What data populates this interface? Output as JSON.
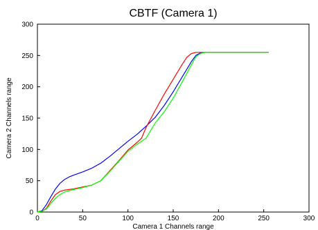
{
  "chart_data": {
    "type": "line",
    "title": "CBTF (Camera 1)",
    "xlabel": "Camera 1 Channels range",
    "ylabel": "Camera 2 Channels range",
    "xlim": [
      0,
      300
    ],
    "ylim": [
      0,
      300
    ],
    "xticks": [
      0,
      50,
      100,
      150,
      200,
      250,
      300
    ],
    "yticks": [
      0,
      50,
      100,
      150,
      200,
      250,
      300
    ],
    "grid": false,
    "series": [
      {
        "color": "#0000ff",
        "x": [
          0,
          5,
          10,
          15,
          20,
          25,
          30,
          35,
          40,
          50,
          60,
          70,
          80,
          90,
          100,
          110,
          120,
          130,
          140,
          150,
          160,
          170,
          175,
          180,
          185,
          190,
          200,
          210,
          220,
          230,
          240,
          255
        ],
        "y": [
          0,
          2,
          12,
          25,
          37,
          46,
          52,
          56,
          59,
          64,
          70,
          78,
          89,
          101,
          113,
          124,
          137,
          151,
          170,
          192,
          216,
          240,
          250,
          254,
          255,
          255,
          255,
          255,
          255,
          255,
          255,
          255
        ]
      },
      {
        "color": "#ff0000",
        "x": [
          0,
          5,
          10,
          15,
          20,
          25,
          30,
          40,
          50,
          60,
          70,
          80,
          90,
          100,
          110,
          115,
          120,
          130,
          140,
          150,
          160,
          165,
          170,
          175,
          180,
          190,
          200,
          210,
          220,
          230,
          240,
          255
        ],
        "y": [
          0,
          1,
          6,
          18,
          28,
          33,
          35,
          37,
          40,
          43,
          50,
          66,
          82,
          99,
          111,
          118,
          135,
          162,
          188,
          212,
          236,
          247,
          253,
          255,
          255,
          255,
          255,
          255,
          255,
          255,
          255,
          255
        ]
      },
      {
        "color": "#00ff00",
        "x": [
          0,
          5,
          10,
          15,
          20,
          25,
          30,
          40,
          50,
          60,
          70,
          80,
          90,
          100,
          110,
          120,
          125,
          130,
          140,
          150,
          160,
          170,
          175,
          180,
          185,
          190,
          200,
          210,
          220,
          230,
          240,
          255
        ],
        "y": [
          0,
          1,
          5,
          14,
          22,
          28,
          32,
          36,
          39,
          43,
          50,
          65,
          81,
          97,
          108,
          118,
          130,
          142,
          160,
          182,
          208,
          235,
          248,
          253,
          255,
          255,
          255,
          255,
          255,
          255,
          255,
          255
        ]
      }
    ]
  }
}
